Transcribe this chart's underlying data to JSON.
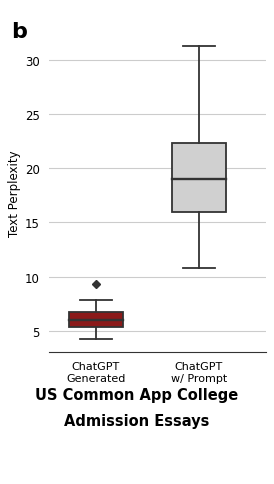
{
  "title_label": "b",
  "ylabel": "Text Perplexity",
  "subtitle_line1": "US Common App College",
  "subtitle_line2": "Admission Essays",
  "ylim": [
    3.0,
    32.5
  ],
  "yticks": [
    5,
    10,
    15,
    20,
    25,
    30
  ],
  "box1": {
    "label": "ChatGPT\nGenerated",
    "whisker_low": 4.2,
    "q1": 5.3,
    "median": 6.0,
    "q3": 6.7,
    "whisker_high": 7.8,
    "fliers": [
      9.3
    ],
    "color": "#8B1A1A",
    "edge_color": "#333333"
  },
  "box2": {
    "label": "ChatGPT\nw/ Prompt",
    "whisker_low": 10.8,
    "q1": 16.0,
    "median": 19.0,
    "q3": 22.3,
    "whisker_high": 31.3,
    "fliers": [],
    "color": "#d0d0d0",
    "edge_color": "#333333"
  },
  "background_color": "#ffffff",
  "grid_color": "#cccccc",
  "positions": [
    1,
    2
  ],
  "box_width": 0.52
}
